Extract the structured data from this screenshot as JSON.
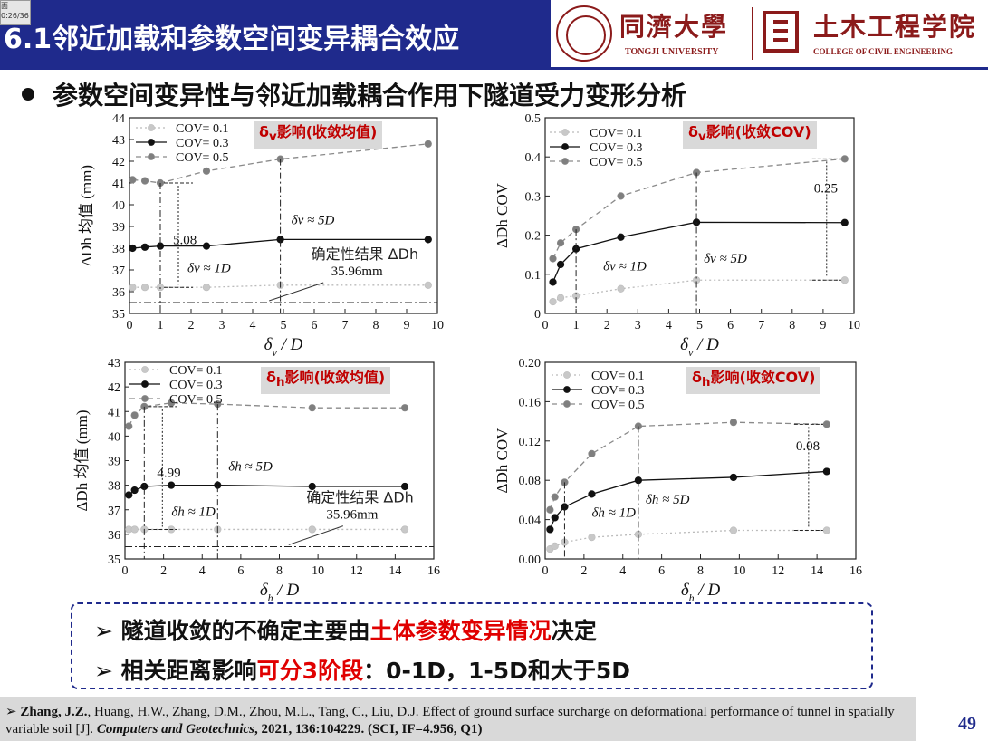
{
  "header": {
    "title": "6.1邻近加载和参数空间变异耦合效应",
    "thumbnail_text": "面",
    "thumbnail_time": "0:26/36",
    "university_name": "同濟大學",
    "university_en": "TONGJI UNIVERSITY",
    "college_name": "土木工程学院",
    "college_en": "COLLEGE OF CIVIL ENGINEERING"
  },
  "subtitle": "参数空间变异性与邻近加载耦合作用下隧道受力变形分析",
  "chart_data": [
    {
      "type": "line",
      "tag": "δv影响(收敛均值)",
      "tag_symbol": "δ",
      "tag_sub": "v",
      "tag_rest": "影响(收敛均值)",
      "xlabel": "δv / D",
      "xlabel_symbol": "δ",
      "xlabel_sub": "v",
      "xlabel_rest": " / D",
      "ylabel": "ΔDh 均值 (mm)",
      "xlim": [
        0,
        10
      ],
      "ylim": [
        35,
        44
      ],
      "xticks": [
        0,
        1,
        2,
        3,
        4,
        5,
        6,
        7,
        8,
        9,
        10
      ],
      "yticks": [
        35,
        36,
        37,
        38,
        39,
        40,
        41,
        42,
        43,
        44
      ],
      "series": [
        {
          "name": "COV= 0.1",
          "x": [
            0.1,
            0.5,
            1,
            2.5,
            4.9,
            9.7
          ],
          "values": [
            36.2,
            36.2,
            36.2,
            36.2,
            36.3,
            36.3
          ]
        },
        {
          "name": "COV= 0.3",
          "x": [
            0.1,
            0.5,
            1,
            2.5,
            4.9,
            9.7
          ],
          "values": [
            38.0,
            38.05,
            38.1,
            38.1,
            38.4,
            38.4
          ]
        },
        {
          "name": "COV= 0.5",
          "x": [
            0.1,
            0.5,
            1,
            2.5,
            4.9,
            9.7
          ],
          "values": [
            41.15,
            41.1,
            41.0,
            41.55,
            42.1,
            42.8
          ]
        }
      ],
      "reference_line": 35.5,
      "annotations": {
        "gap": "5.08",
        "near_label": "δv ≈ 1D",
        "far_label": "δv ≈ 5D",
        "det_label": "确定性结果 ΔDh",
        "det_value": "35.96mm"
      }
    },
    {
      "type": "line",
      "tag": "δv影响(收敛COV)",
      "tag_symbol": "δ",
      "tag_sub": "v",
      "tag_rest": "影响(收敛COV)",
      "xlabel": "δv / D",
      "xlabel_symbol": "δ",
      "xlabel_sub": "v",
      "xlabel_rest": " / D",
      "ylabel": "ΔDh COV",
      "xlim": [
        0,
        10
      ],
      "ylim": [
        0.0,
        0.5
      ],
      "xticks": [
        0,
        1,
        2,
        3,
        4,
        5,
        6,
        7,
        8,
        9,
        10
      ],
      "yticks": [
        0.0,
        0.1,
        0.2,
        0.3,
        0.4,
        0.5
      ],
      "series": [
        {
          "name": "COV= 0.1",
          "x": [
            0.25,
            0.5,
            1,
            2.45,
            4.9,
            9.7
          ],
          "values": [
            0.03,
            0.04,
            0.045,
            0.063,
            0.085,
            0.085
          ]
        },
        {
          "name": "COV= 0.3",
          "x": [
            0.25,
            0.5,
            1,
            2.45,
            4.9,
            9.7
          ],
          "values": [
            0.08,
            0.125,
            0.165,
            0.195,
            0.233,
            0.232
          ]
        },
        {
          "name": "COV= 0.5",
          "x": [
            0.25,
            0.5,
            1,
            2.45,
            4.9,
            9.7
          ],
          "values": [
            0.14,
            0.18,
            0.215,
            0.3,
            0.36,
            0.395
          ]
        }
      ],
      "annotations": {
        "gap": "0.25",
        "near_label": "δv ≈ 1D",
        "far_label": "δv ≈ 5D"
      }
    },
    {
      "type": "line",
      "tag": "δh影响(收敛均值)",
      "tag_symbol": "δ",
      "tag_sub": "h",
      "tag_rest": "影响(收敛均值)",
      "xlabel": "δh / D",
      "xlabel_symbol": "δ",
      "xlabel_sub": "h",
      "xlabel_rest": " / D",
      "ylabel": "ΔDh 均值 (mm)",
      "xlim": [
        0,
        16
      ],
      "ylim": [
        35,
        43
      ],
      "xticks": [
        0,
        2,
        4,
        6,
        8,
        10,
        12,
        14,
        16
      ],
      "yticks": [
        35,
        36,
        37,
        38,
        39,
        40,
        41,
        42,
        43
      ],
      "series": [
        {
          "name": "COV= 0.1",
          "x": [
            0.2,
            0.5,
            1,
            2.4,
            4.8,
            9.7,
            14.5
          ],
          "values": [
            36.2,
            36.2,
            36.2,
            36.2,
            36.2,
            36.2,
            36.2
          ]
        },
        {
          "name": "COV= 0.3",
          "x": [
            0.2,
            0.5,
            1,
            2.4,
            4.8,
            9.7,
            14.5
          ],
          "values": [
            37.6,
            37.8,
            37.95,
            38.0,
            38.0,
            37.95,
            37.95
          ]
        },
        {
          "name": "COV= 0.5",
          "x": [
            0.2,
            0.5,
            1,
            2.4,
            4.8,
            9.7,
            14.5
          ],
          "values": [
            40.4,
            40.85,
            41.2,
            41.35,
            41.3,
            41.15,
            41.15
          ]
        }
      ],
      "reference_line": 35.5,
      "annotations": {
        "gap": "4.99",
        "near_label": "δh ≈ 1D",
        "far_label": "δh ≈ 5D",
        "det_label": "确定性结果 ΔDh",
        "det_value": "35.96mm"
      }
    },
    {
      "type": "line",
      "tag": "δh影响(收敛COV)",
      "tag_symbol": "δ",
      "tag_sub": "h",
      "tag_rest": "影响(收敛COV)",
      "xlabel": "δh / D",
      "xlabel_symbol": "δ",
      "xlabel_sub": "h",
      "xlabel_rest": " / D",
      "ylabel": "ΔDh COV",
      "xlim": [
        0,
        16
      ],
      "ylim": [
        0.0,
        0.2
      ],
      "xticks": [
        0,
        2,
        4,
        6,
        8,
        10,
        12,
        14,
        16
      ],
      "yticks": [
        0.0,
        0.04,
        0.08,
        0.12,
        0.16,
        0.2
      ],
      "ytick_labels": [
        "0.00",
        "0.04",
        "0.08",
        "0.12",
        "0.16",
        "0.20"
      ],
      "series": [
        {
          "name": "COV= 0.1",
          "x": [
            0.25,
            0.5,
            1,
            2.4,
            4.8,
            9.7,
            14.5
          ],
          "values": [
            0.01,
            0.013,
            0.017,
            0.022,
            0.025,
            0.029,
            0.029
          ]
        },
        {
          "name": "COV= 0.3",
          "x": [
            0.25,
            0.5,
            1,
            2.4,
            4.8,
            9.7,
            14.5
          ],
          "values": [
            0.03,
            0.042,
            0.053,
            0.066,
            0.08,
            0.083,
            0.089
          ]
        },
        {
          "name": "COV= 0.5",
          "x": [
            0.25,
            0.5,
            1,
            2.4,
            4.8,
            9.7,
            14.5
          ],
          "values": [
            0.05,
            0.063,
            0.078,
            0.107,
            0.135,
            0.139,
            0.137
          ]
        }
      ],
      "annotations": {
        "gap": "0.08",
        "near_label": "δh ≈ 1D",
        "far_label": "δh ≈ 5D"
      }
    }
  ],
  "conclusions": [
    {
      "prefix": "隧道收敛的不确定主要由",
      "highlight": "土体参数变异情况",
      "suffix": "决定"
    },
    {
      "prefix": "相关距离影响",
      "highlight": "可分3阶段",
      "suffix": "：0-1D，1-5D和大于5D"
    }
  ],
  "reference": {
    "marker": "➢",
    "author_bold": "Zhang, J.Z.",
    "authors_rest": ", Huang, H.W., Zhang, D.M., Zhou, M.L., Tang, C., Liu, D.J. Effect of ground surface surcharge on deformational performance of tunnel in spatially variable soil [J]. ",
    "journal": "Computers and Geotechnics",
    "volume": ", 2021, 136:104229. (SCI, IF=4.956, Q1)"
  },
  "page_number": "49",
  "colors": {
    "header_blue": "#1f2a8c",
    "brand_red": "#8b1a1a",
    "highlight_red": "#e00000",
    "tag_bg": "#d9d9d9"
  }
}
